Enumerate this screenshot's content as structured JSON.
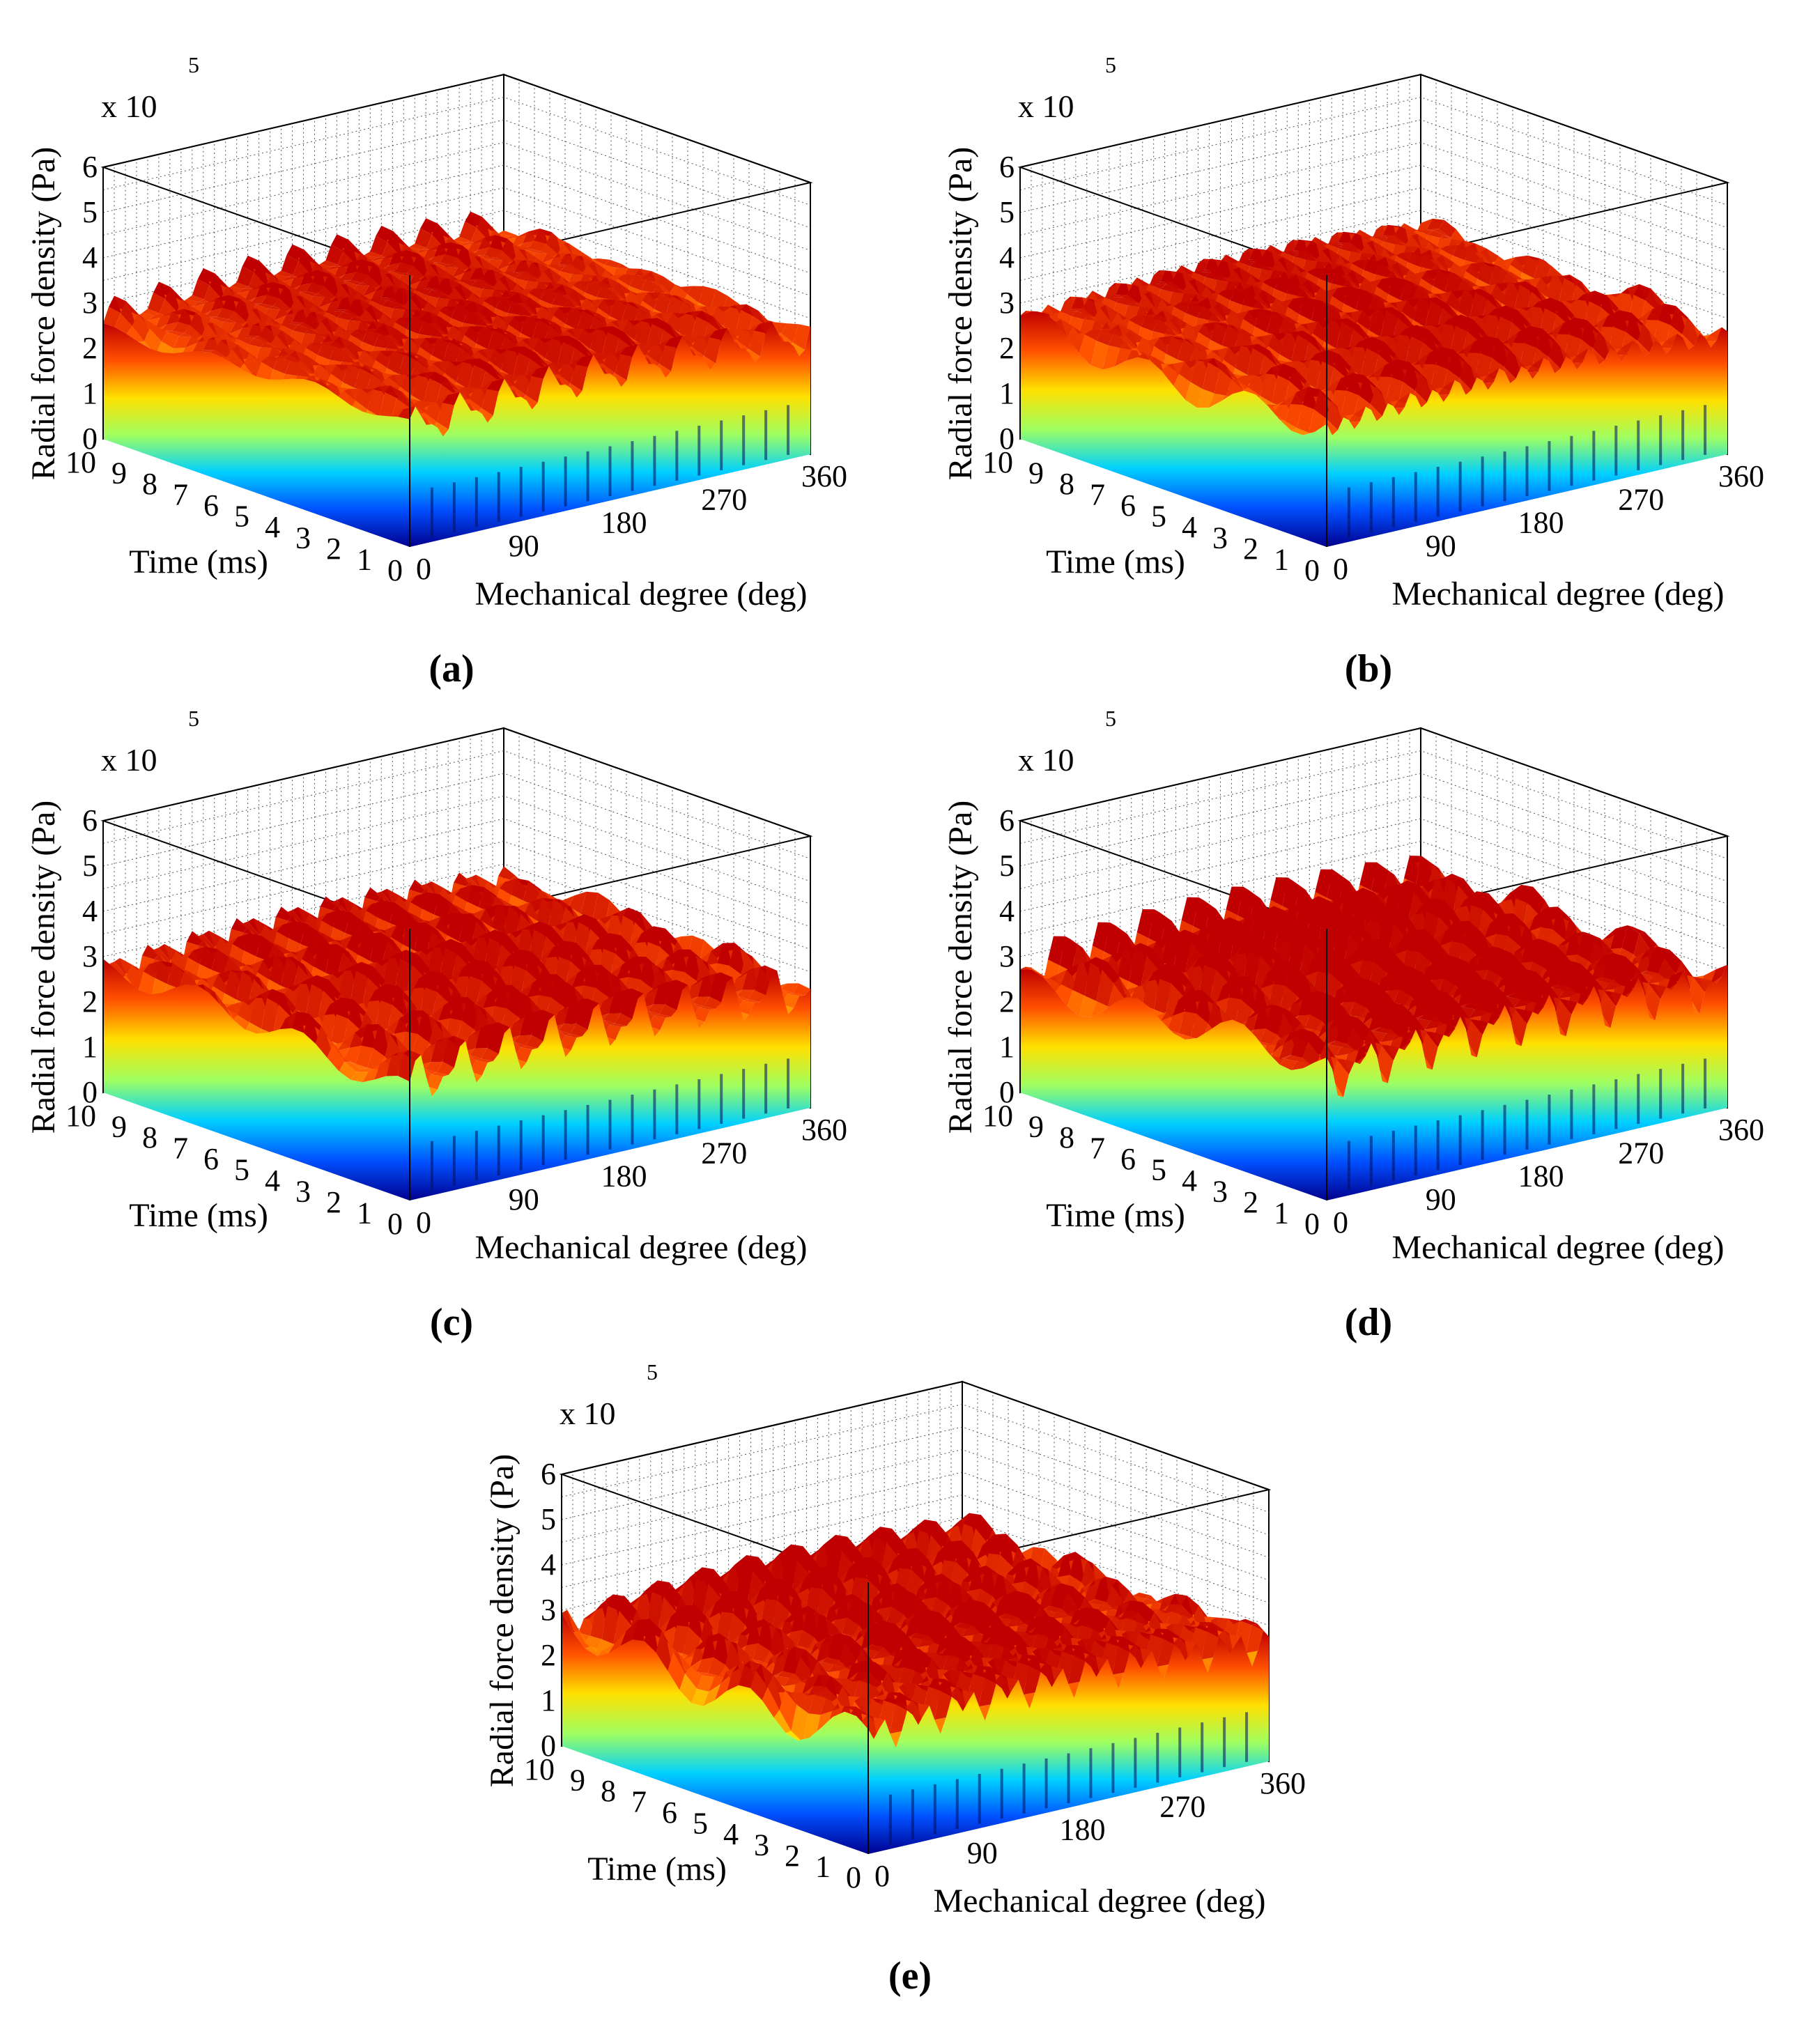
{
  "chart_data": [
    {
      "id": "a",
      "type": "surface3d",
      "panel_label": "(a)",
      "zlabel": "Radial force density (Pa)",
      "xlabel": "Mechanical degree (deg)",
      "ylabel": "Time (ms)",
      "z_multiplier": "x 10",
      "z_exponent": "5",
      "zticks": [
        "0",
        "1",
        "2",
        "3",
        "4",
        "5",
        "6"
      ],
      "xticks": [
        "0",
        "90",
        "180",
        "270",
        "360"
      ],
      "yticks": [
        "0",
        "1",
        "2",
        "3",
        "4",
        "5",
        "6",
        "7",
        "8",
        "9",
        "10"
      ],
      "xlim": [
        0,
        360
      ],
      "ylim": [
        0,
        10
      ],
      "zlim": [
        0,
        6
      ],
      "surface_level": 2.6,
      "ripple": 0.35,
      "colormap": [
        "#00008f",
        "#0050ff",
        "#00d0ff",
        "#a0ff60",
        "#ffe000",
        "#ff5000",
        "#c00000"
      ]
    },
    {
      "id": "b",
      "type": "surface3d",
      "panel_label": "(b)",
      "zlabel": "Radial force density (Pa)",
      "xlabel": "Mechanical degree (deg)",
      "ylabel": "Time (ms)",
      "z_multiplier": "x 10",
      "z_exponent": "5",
      "zticks": [
        "0",
        "1",
        "2",
        "3",
        "4",
        "5",
        "6"
      ],
      "xticks": [
        "0",
        "90",
        "180",
        "270",
        "360"
      ],
      "yticks": [
        "0",
        "1",
        "2",
        "3",
        "4",
        "5",
        "6",
        "7",
        "8",
        "9",
        "10"
      ],
      "xlim": [
        0,
        360
      ],
      "ylim": [
        0,
        10
      ],
      "zlim": [
        0,
        6
      ],
      "surface_level": 2.6,
      "ripple": 0.4,
      "colormap": [
        "#00008f",
        "#0050ff",
        "#00d0ff",
        "#a0ff60",
        "#ffe000",
        "#ff5000",
        "#c00000"
      ]
    },
    {
      "id": "c",
      "type": "surface3d",
      "panel_label": "(c)",
      "zlabel": "Radial force density (Pa)",
      "xlabel": "Mechanical degree (deg)",
      "ylabel": "Time (ms)",
      "z_multiplier": "x 10",
      "z_exponent": "5",
      "zticks": [
        "0",
        "1",
        "2",
        "3",
        "4",
        "5",
        "6"
      ],
      "xticks": [
        "0",
        "90",
        "180",
        "270",
        "360"
      ],
      "yticks": [
        "0",
        "1",
        "2",
        "3",
        "4",
        "5",
        "6",
        "7",
        "8",
        "9",
        "10"
      ],
      "xlim": [
        0,
        360
      ],
      "ylim": [
        0,
        10
      ],
      "zlim": [
        0,
        6
      ],
      "surface_level": 2.6,
      "ripple": 0.45,
      "colormap": [
        "#00008f",
        "#0050ff",
        "#00d0ff",
        "#a0ff60",
        "#ffe000",
        "#ff5000",
        "#c00000"
      ]
    },
    {
      "id": "d",
      "type": "surface3d",
      "panel_label": "(d)",
      "zlabel": "Radial force density (Pa)",
      "xlabel": "Mechanical degree (deg)",
      "ylabel": "Time (ms)",
      "z_multiplier": "x 10",
      "z_exponent": "5",
      "zticks": [
        "0",
        "1",
        "2",
        "3",
        "4",
        "5",
        "6"
      ],
      "xticks": [
        "0",
        "90",
        "180",
        "270",
        "360"
      ],
      "yticks": [
        "0",
        "1",
        "2",
        "3",
        "4",
        "5",
        "6",
        "7",
        "8",
        "9",
        "10"
      ],
      "xlim": [
        0,
        360
      ],
      "ylim": [
        0,
        10
      ],
      "zlim": [
        0,
        6
      ],
      "surface_level": 2.7,
      "ripple": 0.5,
      "colormap": [
        "#00008f",
        "#0050ff",
        "#00d0ff",
        "#a0ff60",
        "#ffe000",
        "#ff5000",
        "#c00000"
      ]
    },
    {
      "id": "e",
      "type": "surface3d",
      "panel_label": "(e)",
      "zlabel": "Radial force density (Pa)",
      "xlabel": "Mechanical degree (deg)",
      "ylabel": "Time (ms)",
      "z_multiplier": "x 10",
      "z_exponent": "5",
      "zticks": [
        "0",
        "1",
        "2",
        "3",
        "4",
        "5",
        "6"
      ],
      "xticks": [
        "0",
        "90",
        "180",
        "270",
        "360"
      ],
      "yticks": [
        "0",
        "1",
        "2",
        "3",
        "4",
        "5",
        "6",
        "7",
        "8",
        "9",
        "10"
      ],
      "xlim": [
        0,
        360
      ],
      "ylim": [
        0,
        10
      ],
      "zlim": [
        0,
        6
      ],
      "surface_level": 2.6,
      "ripple": 0.55,
      "colormap": [
        "#00008f",
        "#0050ff",
        "#00d0ff",
        "#a0ff60",
        "#ffe000",
        "#ff5000",
        "#c00000"
      ]
    }
  ]
}
